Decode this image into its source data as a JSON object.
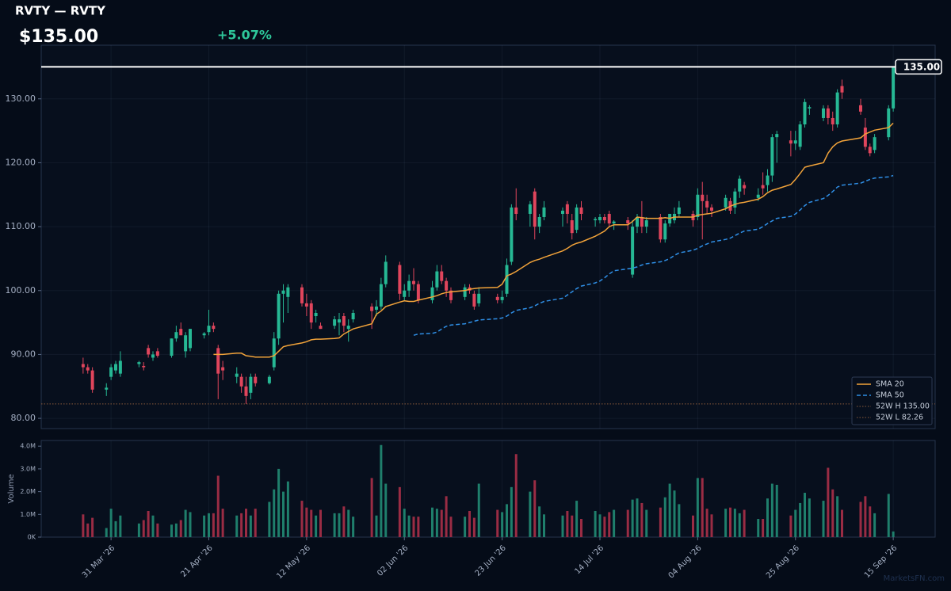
{
  "chart_data": {
    "type": "candlestick",
    "title": "RVTY — RVTY",
    "price_label": "$135.00",
    "change_label": "+5.07%",
    "watermark": "MarketsFN.com",
    "volume_axis_label": "Volume",
    "up_color": "#26b894",
    "down_color": "#e0455c",
    "volume_up_color": "#1f7f6c",
    "volume_down_color": "#9a2c44",
    "grid": true,
    "legend": "lower right",
    "xlim": [
      "2026-03-16",
      "2026-09-24"
    ],
    "xticks": [
      {
        "value": "2026-03-31",
        "label": "31 Mar '26"
      },
      {
        "value": "2026-04-21",
        "label": "21 Apr '26"
      },
      {
        "value": "2026-05-12",
        "label": "12 May '26"
      },
      {
        "value": "2026-06-02",
        "label": "02 Jun '26"
      },
      {
        "value": "2026-06-23",
        "label": "23 Jun '26"
      },
      {
        "value": "2026-07-14",
        "label": "14 Jul '26"
      },
      {
        "value": "2026-08-04",
        "label": "04 Aug '26"
      },
      {
        "value": "2026-08-25",
        "label": "25 Aug '26"
      },
      {
        "value": "2026-09-15",
        "label": "15 Sep '26"
      }
    ],
    "ylim": [
      78.4,
      138.4
    ],
    "yticks": [
      {
        "value": 80,
        "label": "80.00"
      },
      {
        "value": 90,
        "label": "90.00"
      },
      {
        "value": 100,
        "label": "100.00"
      },
      {
        "value": 110,
        "label": "110.00"
      },
      {
        "value": 120,
        "label": "120.00"
      },
      {
        "value": 130,
        "label": "130.00"
      }
    ],
    "volume_ylim": [
      0,
      4.25
    ],
    "volume_yticks": [
      {
        "value": 0,
        "label": "0K"
      },
      {
        "value": 1,
        "label": "1.0M"
      },
      {
        "value": 2,
        "label": "2.0M"
      },
      {
        "value": 3,
        "label": "3.0M"
      },
      {
        "value": 4,
        "label": "4.0M"
      }
    ],
    "last_price": {
      "value": 135,
      "label": "135.00",
      "color": "#ffffff"
    },
    "x": [
      "2026-03-25",
      "2026-03-26",
      "2026-03-27",
      "2026-03-30",
      "2026-03-31",
      "2026-04-01",
      "2026-04-02",
      "2026-04-06",
      "2026-04-07",
      "2026-04-08",
      "2026-04-09",
      "2026-04-10",
      "2026-04-13",
      "2026-04-14",
      "2026-04-15",
      "2026-04-16",
      "2026-04-17",
      "2026-04-20",
      "2026-04-21",
      "2026-04-22",
      "2026-04-23",
      "2026-04-24",
      "2026-04-27",
      "2026-04-28",
      "2026-04-29",
      "2026-04-30",
      "2026-05-01",
      "2026-05-04",
      "2026-05-05",
      "2026-05-06",
      "2026-05-07",
      "2026-05-08",
      "2026-05-11",
      "2026-05-12",
      "2026-05-13",
      "2026-05-14",
      "2026-05-15",
      "2026-05-18",
      "2026-05-19",
      "2026-05-20",
      "2026-05-21",
      "2026-05-22",
      "2026-05-26",
      "2026-05-27",
      "2026-05-28",
      "2026-05-29",
      "2026-06-01",
      "2026-06-02",
      "2026-06-03",
      "2026-06-04",
      "2026-06-05",
      "2026-06-08",
      "2026-06-09",
      "2026-06-10",
      "2026-06-11",
      "2026-06-12",
      "2026-06-15",
      "2026-06-16",
      "2026-06-17",
      "2026-06-18",
      "2026-06-22",
      "2026-06-23",
      "2026-06-24",
      "2026-06-25",
      "2026-06-26",
      "2026-06-29",
      "2026-06-30",
      "2026-07-01",
      "2026-07-02",
      "2026-07-06",
      "2026-07-07",
      "2026-07-08",
      "2026-07-09",
      "2026-07-10",
      "2026-07-13",
      "2026-07-14",
      "2026-07-15",
      "2026-07-16",
      "2026-07-17",
      "2026-07-20",
      "2026-07-21",
      "2026-07-22",
      "2026-07-23",
      "2026-07-24",
      "2026-07-27",
      "2026-07-28",
      "2026-07-29",
      "2026-07-30",
      "2026-07-31",
      "2026-08-03",
      "2026-08-04",
      "2026-08-05",
      "2026-08-06",
      "2026-08-07",
      "2026-08-10",
      "2026-08-11",
      "2026-08-12",
      "2026-08-13",
      "2026-08-14",
      "2026-08-17",
      "2026-08-18",
      "2026-08-19",
      "2026-08-20",
      "2026-08-21",
      "2026-08-24",
      "2026-08-25",
      "2026-08-26",
      "2026-08-27",
      "2026-08-28",
      "2026-08-31",
      "2026-09-01",
      "2026-09-02",
      "2026-09-03",
      "2026-09-04",
      "2026-09-08",
      "2026-09-09",
      "2026-09-10",
      "2026-09-11",
      "2026-09-14",
      "2026-09-15"
    ],
    "open": [
      88.5,
      88,
      87.5,
      84.5,
      86.5,
      87.5,
      87,
      88.5,
      88.2,
      91,
      89.5,
      90.5,
      89.8,
      92.5,
      94,
      90.5,
      91,
      93,
      93.5,
      94.5,
      91,
      88,
      86.5,
      86.5,
      85,
      84,
      86.5,
      85.5,
      88,
      92.5,
      99.5,
      99,
      100.5,
      98,
      98,
      96,
      94.5,
      94.5,
      95,
      96,
      94,
      95.5,
      97.5,
      97,
      97.5,
      101,
      104,
      99,
      100,
      101.5,
      101,
      98.5,
      100.5,
      103,
      101.5,
      100,
      99,
      100.5,
      99.5,
      98,
      99,
      98.5,
      99.5,
      104.5,
      113,
      112,
      115.5,
      110,
      111.5,
      112,
      113.5,
      111,
      109.5,
      113,
      111,
      111,
      111.5,
      112,
      110.5,
      111,
      102.5,
      110,
      111.5,
      110,
      111.5,
      108,
      110.5,
      111,
      112,
      112,
      111.5,
      115,
      114,
      113,
      113,
      114,
      113,
      115.5,
      116.5,
      114.5,
      116.5,
      116.5,
      118,
      124,
      123.5,
      123,
      122.5,
      126,
      128.5,
      127,
      128.5,
      127,
      126,
      132,
      129,
      125.5,
      122.5,
      122,
      124,
      128.5
    ],
    "high": [
      89.5,
      88.5,
      88,
      85.5,
      88.5,
      89,
      90.5,
      89,
      88.8,
      91.5,
      90.5,
      91,
      92.5,
      94.5,
      95,
      93.5,
      94,
      93.5,
      97,
      95,
      91.5,
      89,
      88,
      87,
      86.5,
      87,
      87,
      86.8,
      93.5,
      100,
      101,
      101,
      101,
      99.5,
      98.5,
      97,
      95,
      96,
      96.5,
      96.5,
      95.5,
      97,
      98,
      98.5,
      102,
      105.5,
      104.5,
      101,
      102.5,
      103.5,
      101.5,
      101.5,
      104,
      104,
      102,
      100.5,
      101,
      101,
      100,
      100.5,
      99.5,
      100,
      105,
      113.5,
      116,
      114,
      116,
      112,
      114,
      113,
      114,
      112,
      113.5,
      114,
      111.5,
      112,
      112,
      112.5,
      111,
      111.5,
      111,
      112,
      114,
      111.5,
      112,
      111,
      112,
      113,
      114,
      112.5,
      116,
      117,
      115,
      113.5,
      115,
      114.5,
      116,
      118,
      117,
      116,
      118.5,
      119,
      124.5,
      125,
      125,
      125,
      126.5,
      130,
      129,
      129,
      129,
      128,
      131.5,
      133,
      130,
      127,
      123,
      124.5,
      129,
      135
    ],
    "low": [
      87,
      87,
      84,
      83.5,
      86,
      87,
      86.5,
      88,
      87.5,
      89.5,
      89,
      89.5,
      89.5,
      92,
      93,
      89.5,
      90.5,
      92.5,
      93,
      93.5,
      83,
      86,
      85.5,
      84,
      82.26,
      83,
      85,
      85.3,
      87.5,
      91.5,
      95,
      96.5,
      97.5,
      96,
      94,
      95,
      94,
      94,
      93,
      93.5,
      92,
      95,
      94,
      96,
      97,
      100.5,
      98.5,
      98.5,
      99,
      100,
      98,
      98,
      100,
      101,
      99,
      98,
      98.5,
      99.5,
      97,
      97.5,
      98,
      98,
      99,
      104,
      111,
      110,
      108,
      109,
      111,
      110,
      110.5,
      108,
      109,
      111,
      110,
      110.5,
      110.5,
      110,
      109.5,
      109.5,
      102,
      109,
      109,
      109,
      107.5,
      107.5,
      110,
      110.5,
      111.5,
      110,
      111,
      108,
      112,
      111.5,
      112.5,
      112,
      112,
      114.5,
      115,
      114,
      115,
      115.5,
      117,
      120,
      121,
      122,
      122,
      125.5,
      127.5,
      126.5,
      126,
      125,
      125.5,
      130,
      127.5,
      122,
      121,
      121.5,
      123.5,
      128
    ],
    "close": [
      88,
      87.5,
      84.5,
      84.8,
      88,
      88.5,
      89,
      88.8,
      88,
      90,
      90,
      89.8,
      92.5,
      93.5,
      93,
      93,
      94,
      93.3,
      94.5,
      94,
      87,
      87.5,
      87,
      85,
      83.5,
      86.5,
      85.5,
      86.5,
      92.5,
      99.5,
      100,
      100.5,
      98,
      97.5,
      95,
      96.5,
      94,
      95.5,
      95.5,
      94.5,
      94.5,
      96.5,
      96.8,
      97.5,
      101,
      104.5,
      99.5,
      100,
      101.5,
      101,
      98.5,
      100.5,
      103,
      101.5,
      100,
      98.5,
      100.5,
      100,
      97.5,
      99.5,
      98.5,
      99,
      104,
      113,
      112,
      113.5,
      110,
      111.5,
      113,
      112.5,
      112,
      109,
      113,
      112,
      111.2,
      111.5,
      111,
      110.5,
      110.8,
      110.5,
      110,
      111.5,
      110,
      111,
      108,
      110.5,
      112,
      112,
      113,
      111,
      115,
      114,
      113,
      112.5,
      114.5,
      112.5,
      115.5,
      117.5,
      116,
      115,
      116,
      118,
      124,
      124.5,
      123,
      123.5,
      126,
      129.5,
      128.7,
      128.5,
      127,
      126,
      131,
      131,
      128,
      122.5,
      121.5,
      124,
      128.5,
      135
    ],
    "volume": [
      1.0,
      0.6,
      0.85,
      0.4,
      1.25,
      0.7,
      0.95,
      0.6,
      0.75,
      1.15,
      0.95,
      0.6,
      0.55,
      0.6,
      0.75,
      1.2,
      1.1,
      0.95,
      1.05,
      1.05,
      2.7,
      1.25,
      0.95,
      1.05,
      1.25,
      0.95,
      1.25,
      1.55,
      2.1,
      3.0,
      2.0,
      2.45,
      1.6,
      1.3,
      1.2,
      0.95,
      1.2,
      1.05,
      1.05,
      1.35,
      1.2,
      0.9,
      2.6,
      0.95,
      4.05,
      2.35,
      2.2,
      1.25,
      0.95,
      0.9,
      0.9,
      1.3,
      1.25,
      1.2,
      1.8,
      0.9,
      0.9,
      1.15,
      0.85,
      2.35,
      1.2,
      1.1,
      1.45,
      2.2,
      3.65,
      2.0,
      2.5,
      1.35,
      1.0,
      0.95,
      1.15,
      0.95,
      1.6,
      0.8,
      1.15,
      1.0,
      0.9,
      1.1,
      1.2,
      1.2,
      1.65,
      1.7,
      1.5,
      1.2,
      1.3,
      1.75,
      2.35,
      2.05,
      1.45,
      0.95,
      2.6,
      2.6,
      1.25,
      1.0,
      1.25,
      1.3,
      1.25,
      1.05,
      1.2,
      0.8,
      0.8,
      1.7,
      2.35,
      2.3,
      0.95,
      1.2,
      1.5,
      1.95,
      1.7,
      1.6,
      3.05,
      2.1,
      1.8,
      1.2,
      1.55,
      1.8,
      1.35,
      1.05,
      1.9,
      0.25
    ],
    "overlays": [
      {
        "name": "SMA 20",
        "color": "#f2a33a",
        "dash": "solid",
        "values": [
          null,
          null,
          null,
          null,
          null,
          null,
          null,
          null,
          null,
          null,
          null,
          null,
          null,
          null,
          null,
          null,
          null,
          null,
          null,
          90,
          90,
          90,
          90.2,
          90.2,
          89.8,
          89.7,
          89.6,
          89.6,
          89.8,
          90.5,
          91.2,
          91.4,
          91.8,
          92,
          92.3,
          92.4,
          92.4,
          92.5,
          92.6,
          93.2,
          93.6,
          94,
          94.8,
          96.3,
          96.8,
          97.5,
          98.2,
          98.4,
          98.3,
          98.3,
          98.5,
          99,
          99.2,
          99.5,
          99.7,
          99.8,
          100,
          100.2,
          100.3,
          100.4,
          100.5,
          101,
          102.3,
          102.6,
          103,
          104.4,
          104.7,
          104.9,
          105.2,
          106.2,
          106.6,
          107.1,
          107.4,
          107.6,
          108.5,
          108.9,
          109.3,
          110,
          110.3,
          110.3,
          110.8,
          111.5,
          111.4,
          111.3,
          111.3,
          111.4,
          111.3,
          111.5,
          111.5,
          111.5,
          111.8,
          111.9,
          112,
          112.1,
          112.8,
          113.2,
          113.5,
          113.7,
          113.8,
          114.3,
          114.7,
          115.3,
          115.7,
          115.9,
          116.6,
          117.4,
          118.3,
          119.3,
          119.5,
          120,
          121.5,
          122.5,
          123.1,
          123.4,
          123.9,
          124.5,
          124.8,
          125.1,
          125.5,
          126.2
        ]
      },
      {
        "name": "SMA 50",
        "color": "#2f8fe6",
        "dash": "dashed",
        "values": [
          null,
          null,
          null,
          null,
          null,
          null,
          null,
          null,
          null,
          null,
          null,
          null,
          null,
          null,
          null,
          null,
          null,
          null,
          null,
          null,
          null,
          null,
          null,
          null,
          null,
          null,
          null,
          null,
          null,
          null,
          null,
          null,
          null,
          null,
          null,
          null,
          null,
          null,
          null,
          null,
          null,
          null,
          null,
          null,
          null,
          null,
          null,
          null,
          null,
          93,
          93.2,
          93.3,
          93.5,
          94,
          94.4,
          94.6,
          94.8,
          95,
          95.2,
          95.4,
          95.6,
          95.7,
          96,
          96.5,
          96.9,
          97.3,
          97.6,
          98,
          98.3,
          98.8,
          99.3,
          99.8,
          100.3,
          100.7,
          101.2,
          101.5,
          102,
          102.6,
          103.1,
          103.4,
          103.5,
          103.7,
          104,
          104.2,
          104.5,
          104.7,
          105,
          105.5,
          105.9,
          106.3,
          106.6,
          107,
          107.3,
          107.6,
          108,
          108.2,
          108.6,
          109,
          109.3,
          109.6,
          110,
          110.5,
          110.9,
          111.3,
          111.6,
          112,
          112.6,
          113.3,
          113.8,
          114.4,
          114.9,
          115.5,
          116.2,
          116.5,
          116.8,
          117.1,
          117.4,
          117.6,
          117.8,
          118
        ]
      }
    ],
    "ref_lines": [
      {
        "name": "52W H 135.00",
        "value": 135,
        "color": "#8a5a3a"
      },
      {
        "name": "52W L 82.26",
        "value": 82.26,
        "color": "#8a5a3a"
      }
    ]
  }
}
